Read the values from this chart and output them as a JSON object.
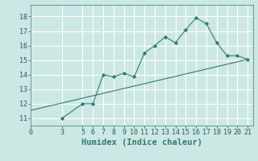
{
  "xlabel": "Humidex (Indice chaleur)",
  "xlim": [
    0,
    21.5
  ],
  "ylim": [
    10.5,
    18.8
  ],
  "xticks": [
    0,
    3,
    5,
    6,
    7,
    8,
    9,
    10,
    11,
    12,
    13,
    14,
    15,
    16,
    17,
    18,
    19,
    20,
    21
  ],
  "yticks": [
    11,
    12,
    13,
    14,
    15,
    16,
    17,
    18
  ],
  "curve_x": [
    3,
    5,
    6,
    7,
    8,
    9,
    10,
    11,
    12,
    13,
    14,
    15,
    16,
    17,
    18,
    19,
    20,
    21
  ],
  "curve_y": [
    11.0,
    12.0,
    12.0,
    14.0,
    13.85,
    14.1,
    13.85,
    15.5,
    16.0,
    16.6,
    16.2,
    17.1,
    17.9,
    17.5,
    16.2,
    15.3,
    15.3,
    15.05
  ],
  "line_x": [
    0,
    21
  ],
  "line_y": [
    11.55,
    15.05
  ],
  "line_color": "#2d7d6e",
  "curve_color": "#2d7d6e",
  "marker_color": "#2d7d6e",
  "bg_color": "#cce8e4",
  "grid_color": "#ffffff",
  "tick_fontsize": 6,
  "xlabel_fontsize": 7.5
}
